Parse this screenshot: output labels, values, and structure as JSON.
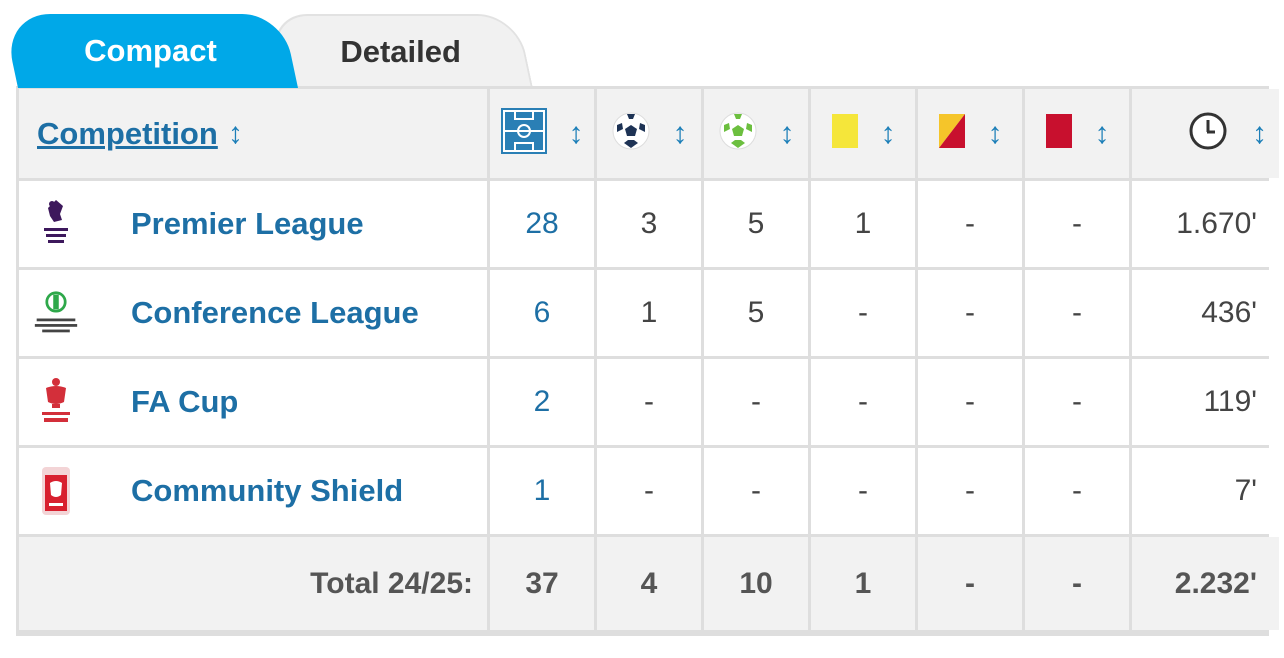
{
  "tabs": [
    {
      "label": "Compact",
      "active": true
    },
    {
      "label": "Detailed",
      "active": false
    }
  ],
  "table": {
    "header": {
      "competition": "Competition",
      "sort_glyph": "↕",
      "icons": [
        "pitch-icon",
        "football-goal-icon",
        "football-assist-icon",
        "yellow-card-icon",
        "yellow-red-card-icon",
        "red-card-icon",
        "clock-icon"
      ]
    },
    "rows": [
      {
        "name": "Premier League",
        "logo": "premier-league-logo",
        "apps": "28",
        "goals": "3",
        "assists": "5",
        "yellow": "1",
        "yellow_red": "-",
        "red": "-",
        "minutes": "1.670'"
      },
      {
        "name": "Conference League",
        "logo": "conference-league-logo",
        "apps": "6",
        "goals": "1",
        "assists": "5",
        "yellow": "-",
        "yellow_red": "-",
        "red": "-",
        "minutes": "436'"
      },
      {
        "name": "FA Cup",
        "logo": "fa-cup-logo",
        "apps": "2",
        "goals": "-",
        "assists": "-",
        "yellow": "-",
        "yellow_red": "-",
        "red": "-",
        "minutes": "119'"
      },
      {
        "name": "Community Shield",
        "logo": "community-shield-logo",
        "apps": "1",
        "goals": "-",
        "assists": "-",
        "yellow": "-",
        "yellow_red": "-",
        "red": "-",
        "minutes": "7'"
      }
    ],
    "total": {
      "label": "Total 24/25:",
      "apps": "37",
      "goals": "4",
      "assists": "10",
      "yellow": "1",
      "yellow_red": "-",
      "red": "-",
      "minutes": "2.232'"
    }
  },
  "colors": {
    "accent": "#00a8e8",
    "link": "#1d6fa5",
    "yellow_card": "#f5e63a",
    "red_card": "#c8102e"
  }
}
